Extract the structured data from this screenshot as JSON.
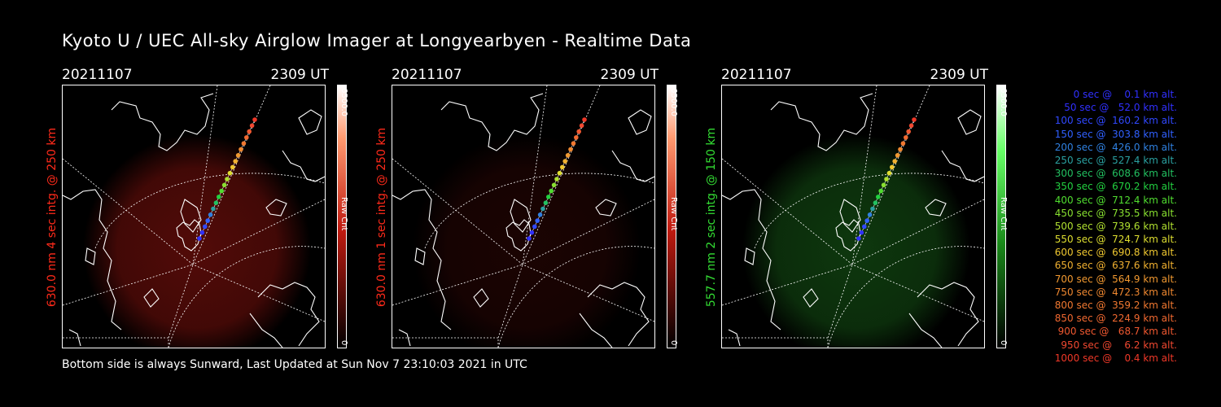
{
  "title": "Kyoto U / UEC All-sky Airglow Imager at Longyearbyen - Realtime Data",
  "footer": "Bottom side is always Sunward, Last Updated at Sun Nov  7 23:10:03 2021 in UTC",
  "colors": {
    "red_label": "#ff2a1a",
    "green_label": "#33dd33"
  },
  "panels": [
    {
      "date": "20211107",
      "time": "2309 UT",
      "side_label": "630.0 nm 4 sec intg. @ 250 km",
      "scale_max": "6500.0",
      "scale_min": "0",
      "unit": "Raw Cnt",
      "color": "red",
      "glow": 0.55
    },
    {
      "date": "20211107",
      "time": "2309 UT",
      "side_label": "630.0 nm 1 sec intg. @ 250 km",
      "scale_max": "6500.0",
      "scale_min": "0",
      "unit": "Raw Cnt",
      "color": "red",
      "glow": 0.18
    },
    {
      "date": "20211107",
      "time": "2309 UT",
      "side_label": "557.7 nm 2 sec intg. @ 150 km",
      "scale_max": "6500.0",
      "scale_min": "0",
      "unit": "Raw Cnt",
      "color": "green",
      "glow": 0.35
    }
  ],
  "legend": [
    {
      "text": "   0 sec @    0.1 km alt.",
      "color": "#3030ff"
    },
    {
      "text": "  50 sec @   52.0 km alt.",
      "color": "#3030ff"
    },
    {
      "text": " 100 sec @  160.2 km alt.",
      "color": "#3048ff"
    },
    {
      "text": " 150 sec @  303.8 km alt.",
      "color": "#3060ff"
    },
    {
      "text": " 200 sec @  426.0 km alt.",
      "color": "#2f80e0"
    },
    {
      "text": " 250 sec @  527.4 km alt.",
      "color": "#2aa0a0"
    },
    {
      "text": " 300 sec @  608.6 km alt.",
      "color": "#22c060"
    },
    {
      "text": " 350 sec @  670.2 km alt.",
      "color": "#22d040"
    },
    {
      "text": " 400 sec @  712.4 km alt.",
      "color": "#50dd30"
    },
    {
      "text": " 450 sec @  735.5 km alt.",
      "color": "#88e030"
    },
    {
      "text": " 500 sec @  739.6 km alt.",
      "color": "#b0e030"
    },
    {
      "text": " 550 sec @  724.7 km alt.",
      "color": "#dddd30"
    },
    {
      "text": " 600 sec @  690.8 km alt.",
      "color": "#f0c830"
    },
    {
      "text": " 650 sec @  637.6 km alt.",
      "color": "#f0b030"
    },
    {
      "text": " 700 sec @  564.9 km alt.",
      "color": "#f09830"
    },
    {
      "text": " 750 sec @  472.3 km alt.",
      "color": "#f08830"
    },
    {
      "text": " 800 sec @  359.2 km alt.",
      "color": "#f07830"
    },
    {
      "text": " 850 sec @  224.9 km alt.",
      "color": "#f06830"
    },
    {
      "text": " 900 sec @   68.7 km alt.",
      "color": "#f05830"
    },
    {
      "text": " 950 sec @    6.2 km alt.",
      "color": "#f04830"
    },
    {
      "text": "1000 sec @    0.4 km alt.",
      "color": "#f03828"
    }
  ]
}
